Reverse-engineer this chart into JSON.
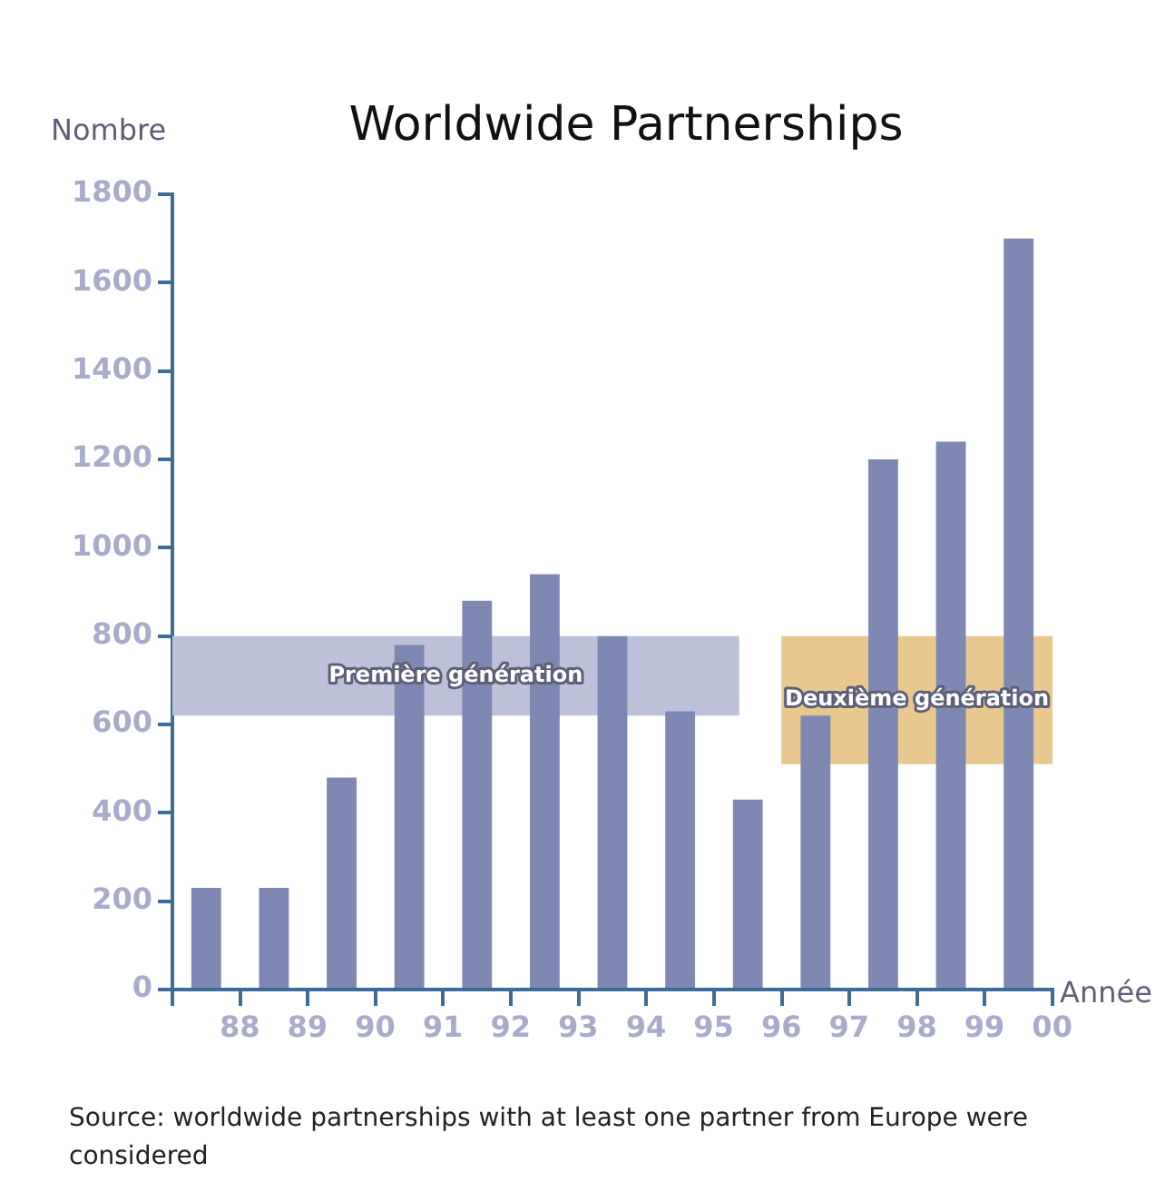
{
  "chart_data": {
    "type": "bar",
    "title": "Worldwide Partnerships",
    "xlabel": "Année",
    "ylabel": "Nombre",
    "categories": [
      "88",
      "89",
      "90",
      "91",
      "92",
      "93",
      "94",
      "95",
      "96",
      "97",
      "98",
      "99",
      "00"
    ],
    "values": [
      230,
      230,
      480,
      780,
      880,
      940,
      800,
      630,
      430,
      620,
      1200,
      1240,
      1700
    ],
    "color": "#7f88b2",
    "ylim": [
      0,
      1800
    ],
    "yticks": [
      0,
      200,
      400,
      600,
      800,
      1000,
      1200,
      1400,
      1600,
      1800
    ],
    "grid": false,
    "legend": false,
    "bands": [
      {
        "axis": "y",
        "from": 620,
        "to": 800,
        "label": "Première génération",
        "color": "#bcc0d8"
      },
      {
        "axis": "y",
        "from": 510,
        "to": 800,
        "label": "Deuxième génération",
        "color": "#e8c88e"
      }
    ],
    "annotations": [
      "Source: worldwide partnerships with at least one partner from Europe were considered"
    ]
  }
}
